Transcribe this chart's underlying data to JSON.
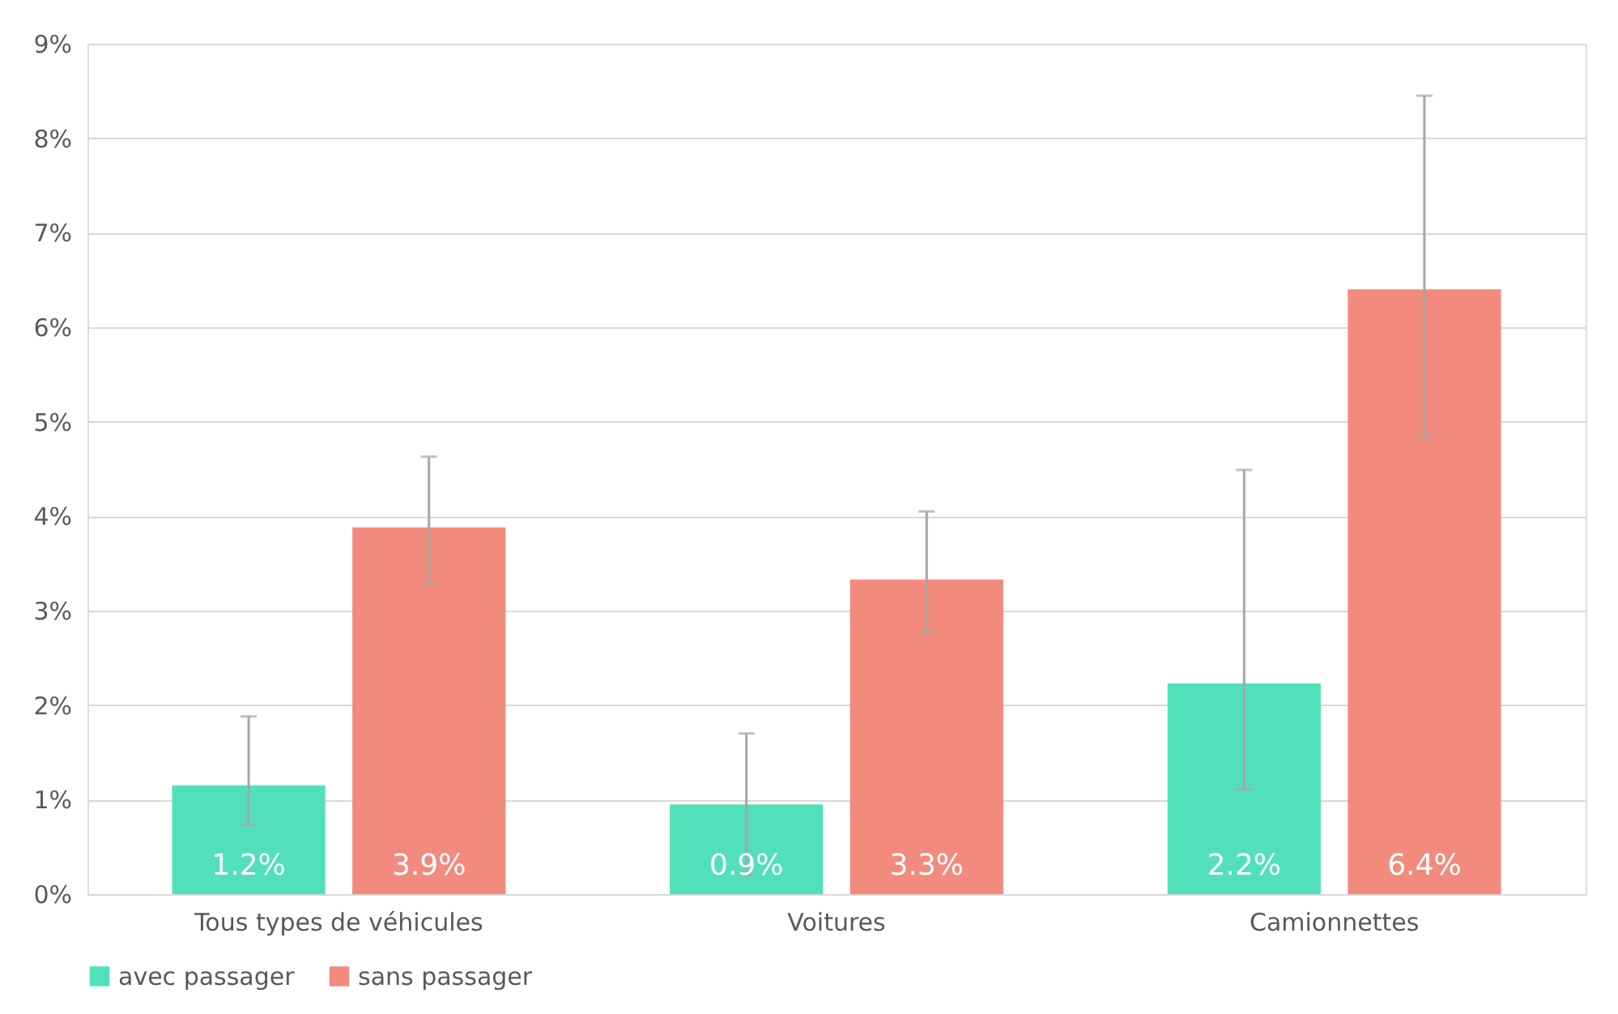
{
  "chart_data": {
    "type": "bar",
    "categories": [
      "Tous types de véhicules",
      "Voitures",
      "Camionnettes"
    ],
    "series": [
      {
        "name": "avec passager",
        "color": "#52e0bb",
        "values": [
          1.15,
          0.95,
          2.23
        ],
        "errors": [
          [
            0.73,
            1.88
          ],
          [
            0.2,
            1.7
          ],
          [
            1.11,
            4.49
          ]
        ],
        "value_labels": [
          "1.2%",
          "0.9%",
          "2.2%"
        ]
      },
      {
        "name": "sans passager",
        "color": "#f28b7e",
        "values": [
          3.88,
          3.33,
          6.4
        ],
        "errors": [
          [
            3.28,
            4.63
          ],
          [
            2.76,
            4.05
          ],
          [
            4.84,
            8.45
          ]
        ],
        "value_labels": [
          "3.9%",
          "3.3%",
          "6.4%"
        ]
      }
    ],
    "ylim": [
      0,
      9
    ],
    "yticks": [
      {
        "value": 0,
        "label": "0%"
      },
      {
        "value": 1,
        "label": "1%"
      },
      {
        "value": 2,
        "label": "2%"
      },
      {
        "value": 3,
        "label": "3%"
      },
      {
        "value": 4,
        "label": "4%"
      },
      {
        "value": 5,
        "label": "5%"
      },
      {
        "value": 6,
        "label": "6%"
      },
      {
        "value": 7,
        "label": "7%"
      },
      {
        "value": 8,
        "label": "8%"
      },
      {
        "value": 9,
        "label": "9%"
      }
    ],
    "grid": "y",
    "legend": "bottom"
  }
}
